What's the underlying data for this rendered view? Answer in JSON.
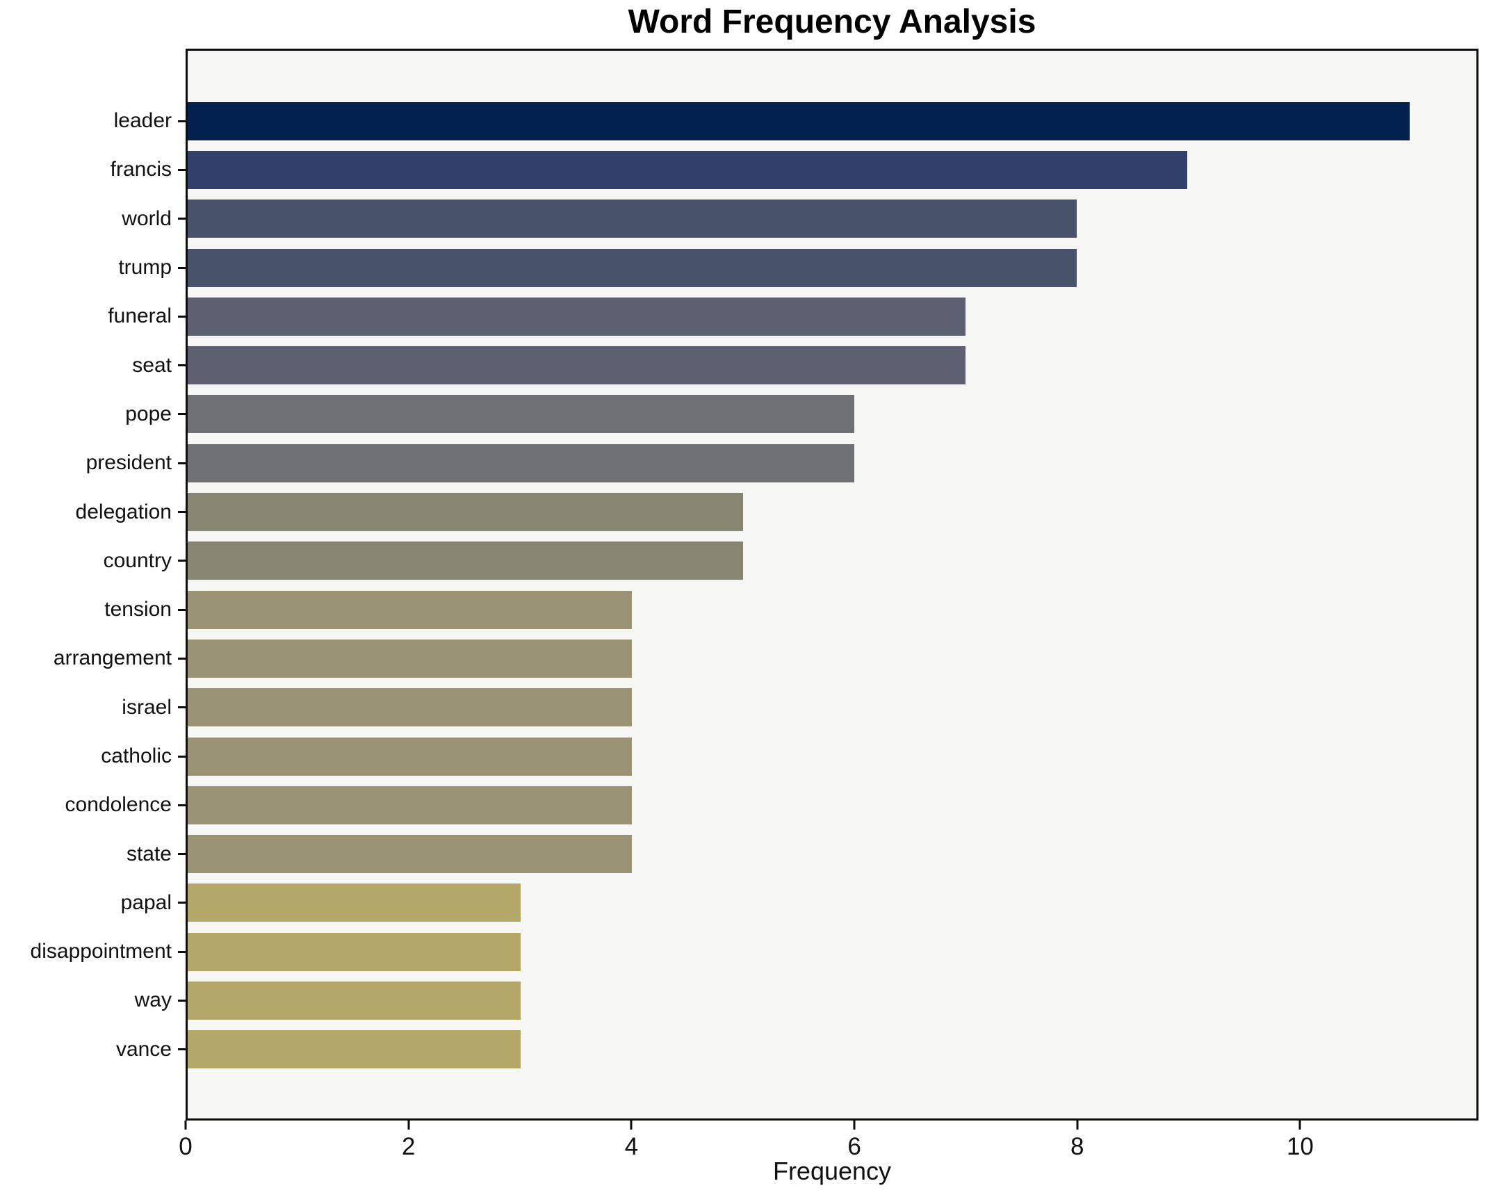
{
  "title": "Word Frequency Analysis",
  "chart_data": {
    "type": "bar",
    "orientation": "horizontal",
    "title": "Word Frequency Analysis",
    "xlabel": "Frequency",
    "ylabel": "",
    "xlim": [
      0,
      11.6
    ],
    "x_ticks": [
      0,
      2,
      4,
      6,
      8,
      10
    ],
    "grid": false,
    "legend": null,
    "plot_background": "#f6f6f5",
    "figure_background": "#ffffff",
    "axis_color": "#0e0e0e",
    "categories": [
      "leader",
      "francis",
      "world",
      "trump",
      "funeral",
      "seat",
      "pope",
      "president",
      "delegation",
      "country",
      "tension",
      "arrangement",
      "israel",
      "catholic",
      "condolence",
      "state",
      "papal",
      "disappointment",
      "way",
      "vance"
    ],
    "values": [
      11,
      9,
      8,
      8,
      7,
      7,
      6,
      6,
      5,
      5,
      4,
      4,
      4,
      4,
      4,
      4,
      3,
      3,
      3,
      3
    ],
    "bar_colors": [
      "#03214e",
      "#31406a",
      "#48526b",
      "#48526b",
      "#5c6070",
      "#5c6070",
      "#6f7174",
      "#6f7174",
      "#878672",
      "#878672",
      "#9a9373",
      "#9a9373",
      "#9a9373",
      "#9a9373",
      "#9a9373",
      "#9a9373",
      "#b3a869",
      "#b3a869",
      "#b3a869",
      "#b3a869"
    ]
  }
}
